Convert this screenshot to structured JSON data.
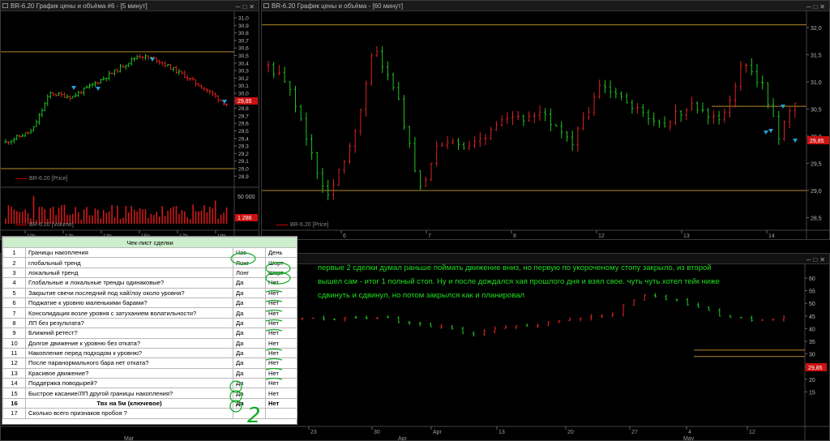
{
  "windows": {
    "w5m": {
      "title": "BR-6.20 График цены и объёма #6 - [5 минут]"
    },
    "w60": {
      "title": "BR-6.20 График цены и объёма - [60 минут]"
    }
  },
  "w5m": {
    "price_axis": [
      "31,0",
      "30,9",
      "30,8",
      "30,7",
      "30,6",
      "30,5",
      "30,4",
      "30,3",
      "30,2",
      "30,1",
      "30,0",
      "29,9",
      "29,8",
      "29,7",
      "29,6",
      "29,5",
      "29,4",
      "29,3",
      "29,2",
      "29,1",
      "29,0",
      "28,9"
    ],
    "price_tag": "29,85",
    "price_legend": "BR-6.20 [Price]",
    "vol_axis": "50 000",
    "vol_tag": "1 286",
    "vol_legend": "BR-6.20 [Volume]",
    "time_labels": [
      "10h",
      "12h",
      "13h",
      "15h",
      "17h",
      "19h"
    ]
  },
  "w60": {
    "price_axis": [
      "32,0",
      "31,5",
      "31,0",
      "30,5",
      "30,0",
      "29,5",
      "29,0",
      "28,5"
    ],
    "price_tag": "29,85",
    "price_legend": "BR-6.20 [Price]",
    "day_labels": [
      "6",
      "7",
      "8",
      "12",
      "13",
      "14"
    ]
  },
  "wD": {
    "price_axis": [
      "60",
      "55",
      "50",
      "45",
      "40",
      "35",
      "30",
      "25",
      "20",
      "15"
    ],
    "price_tag": "29,85",
    "date_labels": [
      "23",
      "30",
      "Apr",
      "13",
      "20",
      "27",
      "4",
      "12"
    ],
    "month_labels": [
      "Mar",
      "Apr",
      "May"
    ]
  },
  "checklist": {
    "header": "Чек-лист сделки",
    "rows": [
      {
        "n": "1",
        "q": "Границы накопления",
        "a": "Час",
        "b": "День"
      },
      {
        "n": "2",
        "q": "глобальный тренд",
        "a": "Лонг",
        "b": "Шорт"
      },
      {
        "n": "3",
        "q": "локальный тренд",
        "a": "Лонг",
        "b": "Шорт"
      },
      {
        "n": "4",
        "q": "Глобальные и локальные тренды одинаковые?",
        "a": "Да",
        "b": "Нет"
      },
      {
        "n": "5",
        "q": "Закрытие свечи последний под хай/лоу около уровня?",
        "a": "Да",
        "b": "Нет"
      },
      {
        "n": "6",
        "q": "Поджатие к уровню маленькими барами?",
        "a": "Да",
        "b": "Нет"
      },
      {
        "n": "7",
        "q": "Консолидация возле уровня с затуханием волатильности?",
        "a": "Да",
        "b": "Нет"
      },
      {
        "n": "8",
        "q": "ЛП без результата?",
        "a": "Да",
        "b": "Нет"
      },
      {
        "n": "9",
        "q": "Ближний ретест?",
        "a": "Да",
        "b": "Нет"
      },
      {
        "n": "10",
        "q": "Долгое движение к уровню без отката?",
        "a": "Да",
        "b": "Нет"
      },
      {
        "n": "11",
        "q": "Накопление перед подходом к уровню?",
        "a": "Да",
        "b": "Нет"
      },
      {
        "n": "12",
        "q": "После паранормального бара нет отката?",
        "a": "Да",
        "b": "Нет"
      },
      {
        "n": "13",
        "q": "Красивое движение?",
        "a": "Да",
        "b": "Нет"
      },
      {
        "n": "14",
        "q": "Поддержка поводырей?",
        "a": "Да",
        "b": "Нет"
      },
      {
        "n": "15",
        "q": "Быстрое касание/ЛП другой границы накопления?",
        "a": "Да",
        "b": "Нет"
      },
      {
        "n": "16",
        "q": "Твх на 5м (ключевое)",
        "a": "Да",
        "b": "Нет"
      },
      {
        "n": "17",
        "q": "Сколько всего признаков пробоя ?",
        "a": "",
        "b": ""
      }
    ],
    "handwritten_total": "2"
  },
  "note": {
    "text": "первые 2 сделки думал раньше поймать движение вниз, но первую по укороченому стопу закрыло, из второй вышел сам - итог 1 полный стоп. Ну и после дождался хая прошлого дня и взял свое. чуть чуть хотел тейк ниже сдвинуть и сдвинул, но потом закрылся как и планировал"
  },
  "colors": {
    "up": "#22c322",
    "down": "#dd2222",
    "level": "#b38a2a",
    "accent": "#22dd22",
    "tag": "#cc1111",
    "entry": "#2a9fd6"
  }
}
